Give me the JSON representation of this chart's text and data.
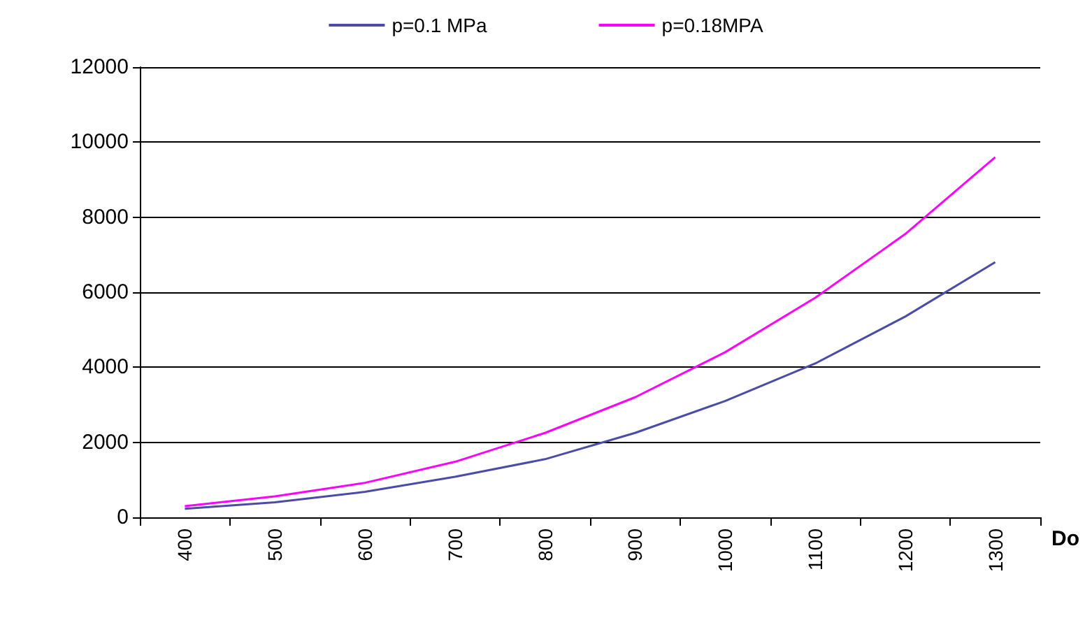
{
  "chart_data": {
    "type": "line",
    "xlabel": "Do",
    "categories": [
      "400",
      "500",
      "600",
      "700",
      "800",
      "900",
      "1000",
      "1100",
      "1200",
      "1300"
    ],
    "series": [
      {
        "name": "p=0.1 MPa",
        "color": "#4b4ba8",
        "values": [
          230,
          400,
          680,
          1080,
          1550,
          2250,
          3100,
          4100,
          5350,
          6800
        ]
      },
      {
        "name": "p=0.18MPA",
        "color": "#ff00ff",
        "values": [
          300,
          560,
          920,
          1480,
          2250,
          3200,
          4400,
          5850,
          7550,
          9600
        ]
      }
    ],
    "ylim": [
      0,
      12000
    ],
    "yticks": [
      0,
      2000,
      4000,
      6000,
      8000,
      10000,
      12000
    ],
    "grid": "y",
    "legend": "top",
    "marker": "none",
    "line_style": "solid"
  }
}
